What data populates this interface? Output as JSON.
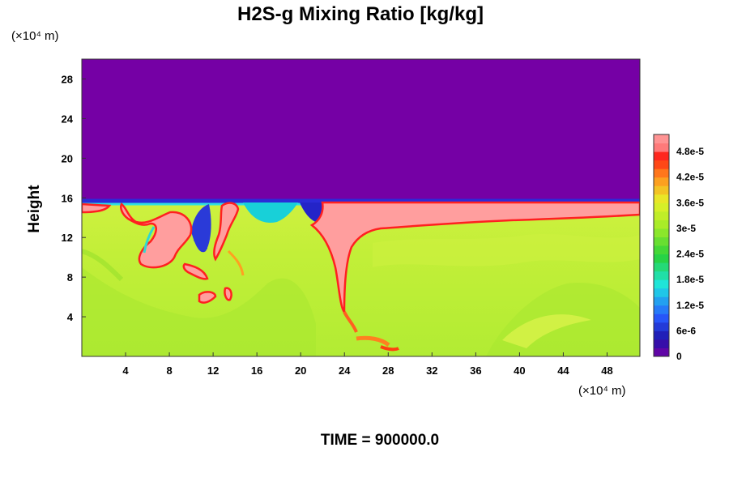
{
  "chart_data": {
    "type": "heatmap",
    "title": "H2S-g Mixing Ratio [kg/kg]",
    "ylabel": "Height",
    "x_unit": "(×10⁴ m)",
    "y_unit": "(×10⁴ m)",
    "xlim": [
      0,
      51
    ],
    "ylim": [
      0,
      30
    ],
    "xticks": [
      4,
      8,
      12,
      16,
      20,
      24,
      28,
      32,
      36,
      40,
      44,
      48
    ],
    "yticks": [
      4,
      8,
      12,
      16,
      20,
      24,
      28
    ],
    "colorbar": {
      "ticks": [
        "0",
        "6e-6",
        "1.2e-5",
        "1.8e-5",
        "2.4e-5",
        "3e-5",
        "3.6e-5",
        "4.2e-5",
        "4.8e-5"
      ],
      "tick_values": [
        0,
        6e-06,
        1.2e-05,
        1.8e-05,
        2.4e-05,
        3e-05,
        3.6e-05,
        4.2e-05,
        4.8e-05
      ],
      "range": [
        0,
        5.2e-05
      ]
    },
    "field_summary": {
      "upper_layer_value": 0,
      "upper_layer_color": "#7500a5",
      "boundary_height": 15.8,
      "lower_background_color": "#b9ef35",
      "max_plume_color": "#ff9e9e"
    },
    "footer": "TIME = 900000.0"
  }
}
